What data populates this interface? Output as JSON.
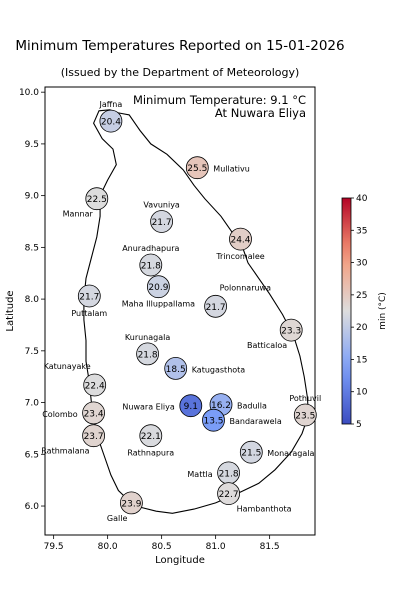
{
  "title": "Minimum Temperatures Reported on 15-01-2026",
  "subtitle": "(Issued by the Department of Meteorology)",
  "annotation": {
    "line1": "Minimum Temperature: 9.1 °C",
    "line2": "At Nuwara Eliya"
  },
  "axes": {
    "xlabel": "Longitude",
    "ylabel": "Latitude",
    "x_ticks": [
      "79.5",
      "80.0",
      "80.5",
      "81.0",
      "81.5"
    ],
    "y_ticks": [
      "6.0",
      "6.5",
      "7.0",
      "7.5",
      "8.0",
      "8.5",
      "9.0",
      "9.5",
      "10.0"
    ]
  },
  "colorbar": {
    "label": "min (°C)",
    "min": 5,
    "max": 40,
    "ticks": [
      "5",
      "10",
      "15",
      "20",
      "25",
      "30",
      "35",
      "40"
    ],
    "colormap": "coolwarm"
  },
  "chart_data": {
    "type": "scatter",
    "xlim": [
      79.42,
      81.92
    ],
    "ylim": [
      5.72,
      10.05
    ],
    "colormap": "coolwarm",
    "vmin": 5,
    "vmax": 40,
    "stations": [
      {
        "name": "Jaffna",
        "lon": 80.03,
        "lat": 9.72,
        "value": 20.4,
        "value_label": "20.4",
        "label_pos": "above"
      },
      {
        "name": "Mullativu",
        "lon": 80.83,
        "lat": 9.27,
        "value": 25.5,
        "value_label": "25.5",
        "label_pos": "right"
      },
      {
        "name": "Mannar",
        "lon": 79.9,
        "lat": 8.97,
        "value": 22.5,
        "value_label": "22.5",
        "label_pos": "below-left"
      },
      {
        "name": "Vavuniya",
        "lon": 80.5,
        "lat": 8.75,
        "value": 21.7,
        "value_label": "21.7",
        "label_pos": "above"
      },
      {
        "name": "Trincomalee",
        "lon": 81.23,
        "lat": 8.58,
        "value": 24.4,
        "value_label": "24.4",
        "label_pos": "below"
      },
      {
        "name": "Anuradhapura",
        "lon": 80.4,
        "lat": 8.33,
        "value": 21.8,
        "value_label": "21.8",
        "label_pos": "above"
      },
      {
        "name": "Maha Illuppallama",
        "lon": 80.47,
        "lat": 8.12,
        "value": 20.9,
        "value_label": "20.9",
        "label_pos": "below"
      },
      {
        "name": "Puttalam",
        "lon": 79.83,
        "lat": 8.03,
        "value": 21.7,
        "value_label": "21.7",
        "label_pos": "below"
      },
      {
        "name": "Polonnaruwa",
        "lon": 81.0,
        "lat": 7.93,
        "value": 21.7,
        "value_label": "21.7",
        "label_pos": "above-right"
      },
      {
        "name": "Batticaloa",
        "lon": 81.7,
        "lat": 7.7,
        "value": 23.3,
        "value_label": "23.3",
        "label_pos": "below-left"
      },
      {
        "name": "Kurunagala",
        "lon": 80.37,
        "lat": 7.47,
        "value": 21.8,
        "value_label": "21.8",
        "label_pos": "above"
      },
      {
        "name": "Katugasthota",
        "lon": 80.63,
        "lat": 7.33,
        "value": 18.5,
        "value_label": "18.5",
        "label_pos": "right"
      },
      {
        "name": "Katunayake",
        "lon": 79.88,
        "lat": 7.17,
        "value": 22.4,
        "value_label": "22.4",
        "label_pos": "above-left"
      },
      {
        "name": "Nuwara Eliya",
        "lon": 80.77,
        "lat": 6.97,
        "value": 9.1,
        "value_label": "9.1",
        "label_pos": "left"
      },
      {
        "name": "Badulla",
        "lon": 81.05,
        "lat": 6.98,
        "value": 16.2,
        "value_label": "16.2",
        "label_pos": "right"
      },
      {
        "name": "Colombo",
        "lon": 79.87,
        "lat": 6.9,
        "value": 23.4,
        "value_label": "23.4",
        "label_pos": "left"
      },
      {
        "name": "Pothuvil",
        "lon": 81.83,
        "lat": 6.88,
        "value": 23.5,
        "value_label": "23.5",
        "label_pos": "above"
      },
      {
        "name": "Bandarawela",
        "lon": 80.98,
        "lat": 6.83,
        "value": 13.5,
        "value_label": "13.5",
        "label_pos": "right"
      },
      {
        "name": "Rathnapura",
        "lon": 80.4,
        "lat": 6.68,
        "value": 22.1,
        "value_label": "22.1",
        "label_pos": "below"
      },
      {
        "name": "Rathmalana",
        "lon": 79.87,
        "lat": 6.68,
        "value": 23.7,
        "value_label": "23.7",
        "label_pos": "below-left"
      },
      {
        "name": "Monaragala",
        "lon": 81.33,
        "lat": 6.52,
        "value": 21.5,
        "value_label": "21.5",
        "label_pos": "right"
      },
      {
        "name": "Mattla",
        "lon": 81.12,
        "lat": 6.32,
        "value": 21.8,
        "value_label": "21.8",
        "label_pos": "left"
      },
      {
        "name": "Hambanthota",
        "lon": 81.12,
        "lat": 6.12,
        "value": 22.7,
        "value_label": "22.7",
        "label_pos": "below-right"
      },
      {
        "name": "Galle",
        "lon": 80.22,
        "lat": 6.03,
        "value": 23.9,
        "value_label": "23.9",
        "label_pos": "below-left"
      }
    ],
    "coastline": [
      [
        79.87,
        9.7
      ],
      [
        79.92,
        9.82
      ],
      [
        80.02,
        9.83
      ],
      [
        80.1,
        9.8
      ],
      [
        80.2,
        9.78
      ],
      [
        80.3,
        9.63
      ],
      [
        80.4,
        9.5
      ],
      [
        80.55,
        9.4
      ],
      [
        80.7,
        9.25
      ],
      [
        80.8,
        9.1
      ],
      [
        80.9,
        8.97
      ],
      [
        81.05,
        8.8
      ],
      [
        81.15,
        8.65
      ],
      [
        81.25,
        8.5
      ],
      [
        81.3,
        8.35
      ],
      [
        81.4,
        8.2
      ],
      [
        81.5,
        8.05
      ],
      [
        81.62,
        7.85
      ],
      [
        81.72,
        7.65
      ],
      [
        81.78,
        7.45
      ],
      [
        81.82,
        7.25
      ],
      [
        81.85,
        7.05
      ],
      [
        81.86,
        6.88
      ],
      [
        81.8,
        6.7
      ],
      [
        81.7,
        6.52
      ],
      [
        81.55,
        6.35
      ],
      [
        81.4,
        6.22
      ],
      [
        81.2,
        6.12
      ],
      [
        81.0,
        6.03
      ],
      [
        80.8,
        5.97
      ],
      [
        80.6,
        5.93
      ],
      [
        80.45,
        5.95
      ],
      [
        80.3,
        5.99
      ],
      [
        80.2,
        6.05
      ],
      [
        80.1,
        6.15
      ],
      [
        80.03,
        6.3
      ],
      [
        79.98,
        6.45
      ],
      [
        79.93,
        6.6
      ],
      [
        79.88,
        6.8
      ],
      [
        79.85,
        7.0
      ],
      [
        79.83,
        7.2
      ],
      [
        79.8,
        7.4
      ],
      [
        79.8,
        7.6
      ],
      [
        79.78,
        7.8
      ],
      [
        79.78,
        8.0
      ],
      [
        79.8,
        8.2
      ],
      [
        79.85,
        8.4
      ],
      [
        79.9,
        8.6
      ],
      [
        79.93,
        8.8
      ],
      [
        79.93,
        9.0
      ],
      [
        80.0,
        9.15
      ],
      [
        80.08,
        9.3
      ],
      [
        80.05,
        9.45
      ],
      [
        79.95,
        9.55
      ],
      [
        79.87,
        9.7
      ]
    ]
  }
}
